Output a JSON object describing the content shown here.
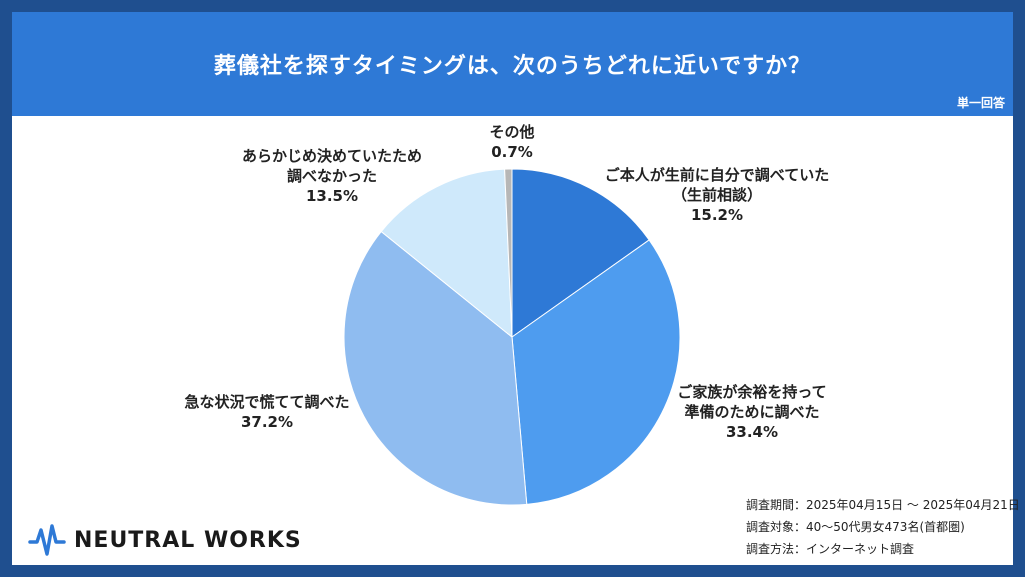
{
  "header": {
    "title": "葬儀社を探すタイミングは、次のうちどれに近いですか？",
    "tag": "単一回答"
  },
  "chart_data": {
    "type": "pie",
    "start_angle_deg": 0,
    "direction": "clockwise",
    "slices": [
      {
        "label_lines": [
          "ご本人が生前に自分で調べていた",
          "（生前相談）"
        ],
        "value": 15.2,
        "value_text": "15.2%",
        "color": "#2e79d6"
      },
      {
        "label_lines": [
          "ご家族が余裕を持って",
          "準備のために調べた"
        ],
        "value": 33.4,
        "value_text": "33.4%",
        "color": "#4e9cef"
      },
      {
        "label_lines": [
          "急な状況で慌てて調べた"
        ],
        "value": 37.2,
        "value_text": "37.2%",
        "color": "#8fbcf0"
      },
      {
        "label_lines": [
          "あらかじめ決めていたため",
          "調べなかった"
        ],
        "value": 13.5,
        "value_text": "13.5%",
        "color": "#cfe9fb"
      },
      {
        "label_lines": [
          "その他"
        ],
        "value": 0.7,
        "value_text": "0.7%",
        "color": "#b7b7b7"
      }
    ]
  },
  "brand": {
    "name": "NEUTRAL WORKS",
    "icon": "pulse-wave-icon",
    "accent": "#2e79d6"
  },
  "survey": {
    "period": "調査期間：2025年04月15日 〜 2025年04月21日",
    "target": "調査対象：40〜50代男女473名(首都圏)",
    "method": "調査方法：インターネット調査"
  }
}
